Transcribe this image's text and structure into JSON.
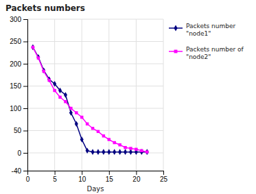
{
  "chart_data": {
    "type": "line",
    "title": "Packets numbers",
    "x_label": "Days",
    "x": [
      1,
      2,
      3,
      4,
      5,
      6,
      7,
      8,
      9,
      10,
      11,
      12,
      13,
      14,
      15,
      16,
      17,
      18,
      19,
      20,
      21,
      22
    ],
    "series": [
      {
        "name": "Packets number\n\"node1\"",
        "color": "#000080",
        "marker": "diamond",
        "values": [
          237,
          215,
          185,
          165,
          155,
          140,
          130,
          90,
          65,
          30,
          5,
          2,
          2,
          2,
          2,
          2,
          2,
          2,
          2,
          2,
          2,
          2
        ]
      },
      {
        "name": "Packets number of\n\"node2\"",
        "color": "#ff00ff",
        "marker": "square",
        "values": [
          237,
          213,
          183,
          163,
          140,
          125,
          115,
          100,
          90,
          80,
          65,
          55,
          48,
          38,
          30,
          23,
          18,
          12,
          10,
          8,
          5,
          2
        ]
      }
    ],
    "xlim": [
      0,
      25
    ],
    "ylim": [
      -40,
      300
    ],
    "xticks": [
      0,
      5,
      10,
      15,
      20,
      25
    ],
    "yticks": [
      -40,
      0,
      50,
      100,
      150,
      200,
      250,
      300
    ],
    "grid": true,
    "legend": "right"
  }
}
